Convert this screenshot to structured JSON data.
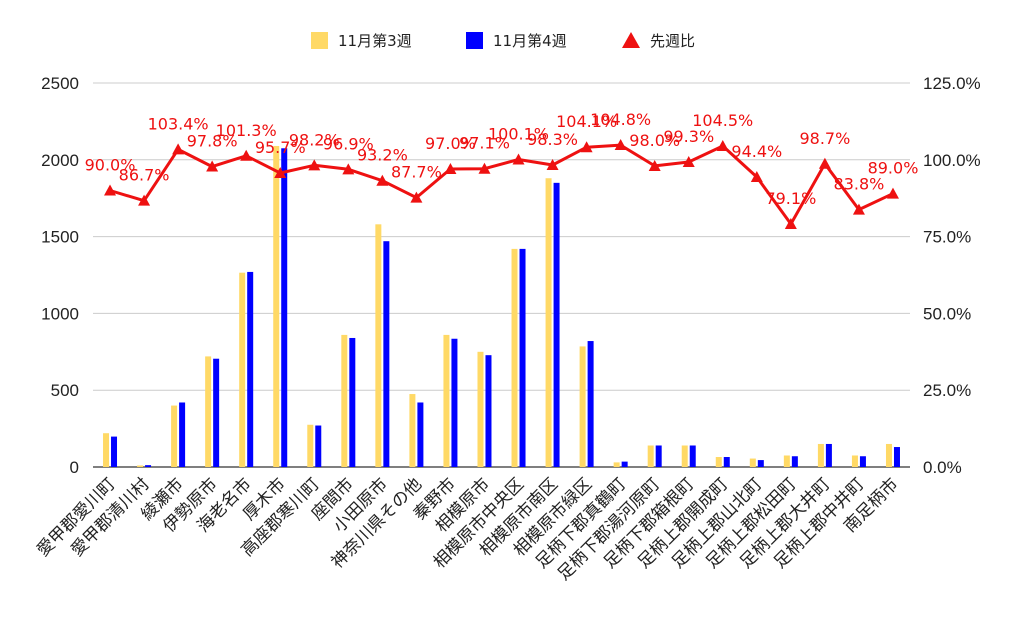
{
  "chart_data": {
    "type": "bar",
    "categories": [
      "愛甲郡愛川町",
      "愛甲郡清川村",
      "綾瀬市",
      "伊勢原市",
      "海老名市",
      "厚木市",
      "高座郡寒川町",
      "座間市",
      "小田原市",
      "神奈川県その他",
      "秦野市",
      "相模原市",
      "相模原市中央区",
      "相模原市南区",
      "相模原市緑区",
      "足柄下郡真鶴町",
      "足柄下郡湯河原町",
      "足柄下郡箱根町",
      "足柄上郡開成町",
      "足柄上郡山北町",
      "足柄上郡松田町",
      "足柄上郡大井町",
      "足柄上郡中井町",
      "南足柄市"
    ],
    "series": [
      {
        "name": "11月第3週",
        "kind": "bar",
        "axis": "left",
        "color": "#ffd966",
        "values": [
          220,
          10,
          400,
          720,
          1265,
          2090,
          275,
          860,
          1580,
          475,
          860,
          750,
          1420,
          1880,
          785,
          30,
          140,
          140,
          65,
          55,
          75,
          150,
          75,
          150
        ]
      },
      {
        "name": "11月第4週",
        "kind": "bar",
        "axis": "left",
        "color": "#0000ff",
        "values": [
          198,
          12,
          420,
          705,
          1270,
          2075,
          270,
          840,
          1470,
          420,
          835,
          728,
          1420,
          1850,
          820,
          35,
          140,
          140,
          65,
          45,
          70,
          150,
          70,
          130
        ]
      },
      {
        "name": "先週比",
        "kind": "line",
        "axis": "right",
        "color": "#ee1111",
        "values": [
          90.0,
          86.7,
          103.4,
          97.8,
          101.3,
          95.7,
          98.2,
          96.9,
          93.2,
          87.7,
          97.0,
          97.1,
          100.1,
          98.3,
          104.1,
          104.8,
          98.0,
          99.3,
          104.5,
          94.4,
          79.1,
          98.7,
          83.8,
          89.0
        ],
        "labels": [
          "90.0%",
          "86.7%",
          "103.4%",
          "97.8%",
          "101.3%",
          "95.7%",
          "98.2%",
          "96.9%",
          "93.2%",
          "87.7%",
          "97.0%",
          "97.1%",
          "100.1%",
          "98.3%",
          "104.1%",
          "104.8%",
          "98.0%",
          "99.3%",
          "104.5%",
          "94.4%",
          "79.1%",
          "98.7%",
          "83.8%",
          "89.0%"
        ]
      }
    ],
    "y_left": {
      "min": 0,
      "max": 2500,
      "ticks": [
        "0",
        "500",
        "1000",
        "1500",
        "2000",
        "2500"
      ]
    },
    "y_right": {
      "min": 0,
      "max": 125,
      "ticks": [
        "0.0%",
        "25.0%",
        "50.0%",
        "75.0%",
        "100.0%",
        "125.0%"
      ]
    },
    "grid": true,
    "legend_position": "top"
  }
}
